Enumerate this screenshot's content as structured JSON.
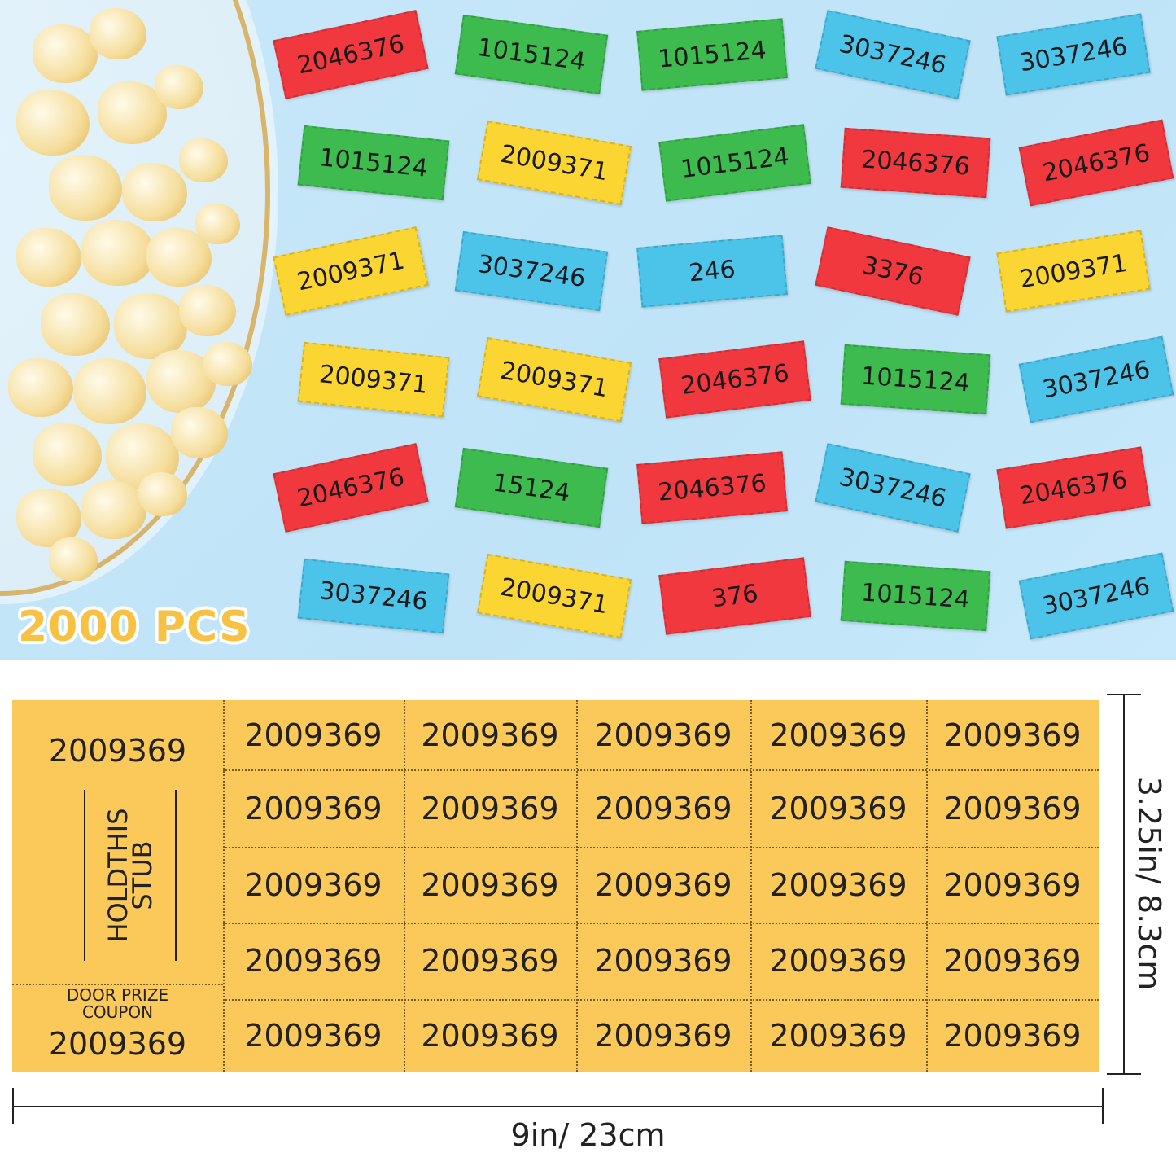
{
  "badge": "2000 PCS",
  "colors": {
    "red": "#f0383e",
    "green": "#3dbb4f",
    "blue": "#4cc4ea",
    "yellow": "#fbd532",
    "sheet": "#fac95a",
    "background": "#c4e6f8"
  },
  "scattered_tickets": [
    {
      "number": "2046376",
      "color": "red"
    },
    {
      "number": "1015124",
      "color": "green"
    },
    {
      "number": "1015124",
      "color": "green"
    },
    {
      "number": "3037246",
      "color": "blue"
    },
    {
      "number": "3037246",
      "color": "blue"
    },
    {
      "number": "1015124",
      "color": "green"
    },
    {
      "number": "2009371",
      "color": "yellow"
    },
    {
      "number": "1015124",
      "color": "green"
    },
    {
      "number": "2046376",
      "color": "red"
    },
    {
      "number": "2046376",
      "color": "red"
    },
    {
      "number": "2009371",
      "color": "yellow"
    },
    {
      "number": "3037246",
      "color": "blue"
    },
    {
      "number": "246",
      "color": "blue"
    },
    {
      "number": "3376",
      "color": "red"
    },
    {
      "number": "2009371",
      "color": "yellow"
    },
    {
      "number": "2009371",
      "color": "yellow"
    },
    {
      "number": "2009371",
      "color": "yellow"
    },
    {
      "number": "2046376",
      "color": "red"
    },
    {
      "number": "1015124",
      "color": "green"
    },
    {
      "number": "3037246",
      "color": "blue"
    },
    {
      "number": "2046376",
      "color": "red"
    },
    {
      "number": "15124",
      "color": "green"
    },
    {
      "number": "2046376",
      "color": "red"
    },
    {
      "number": "3037246",
      "color": "blue"
    },
    {
      "number": "2046376",
      "color": "red"
    },
    {
      "number": "3037246",
      "color": "blue"
    },
    {
      "number": "2009371",
      "color": "yellow"
    },
    {
      "number": "376",
      "color": "red"
    },
    {
      "number": "1015124",
      "color": "green"
    },
    {
      "number": "3037246",
      "color": "blue"
    }
  ],
  "sheet": {
    "stub_number": "2009369",
    "stub_hold_line1": "HOLDTHIS",
    "stub_hold_line2": "STUB",
    "door_line1": "DOOR PRIZE",
    "door_line2": "COUPON",
    "stub_number_bottom": "2009369",
    "ticket_number": "2009369",
    "rows": 5,
    "columns": 5
  },
  "dimensions": {
    "width": "9in/ 23cm",
    "height": "3.25in/ 8.3cm"
  }
}
